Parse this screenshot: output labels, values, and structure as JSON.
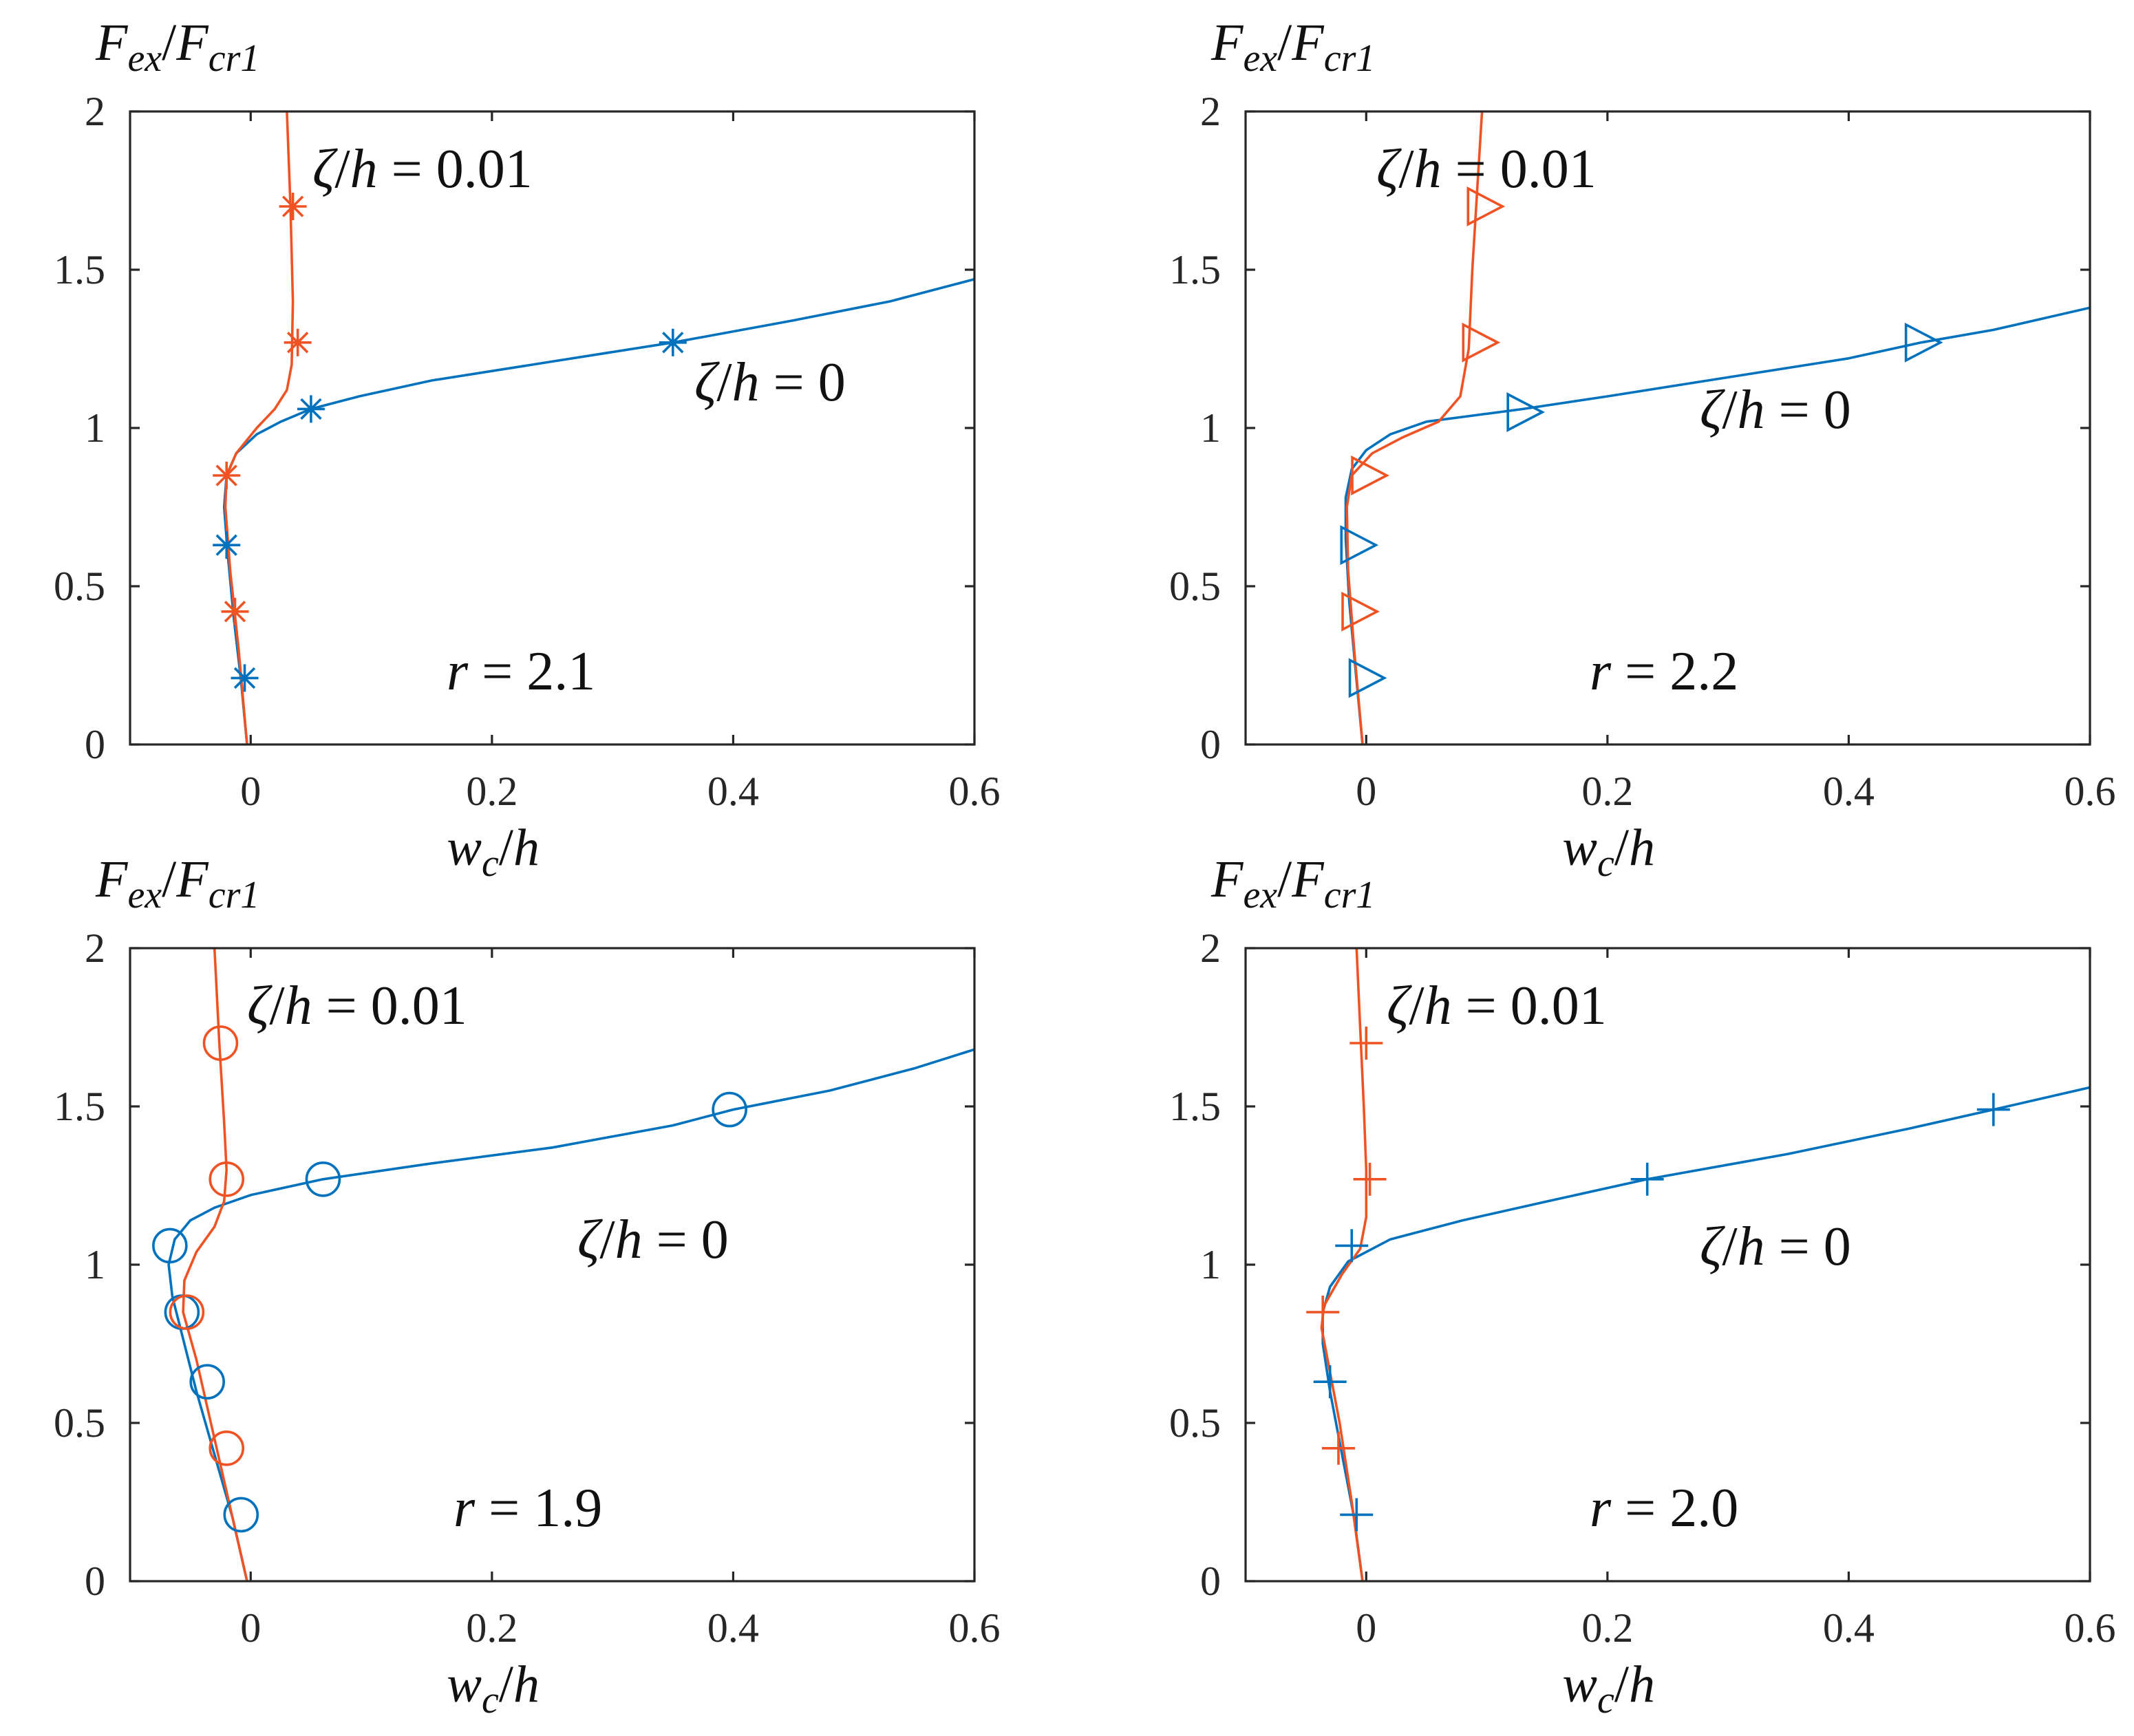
{
  "colors": {
    "zeta0": "#0072BD",
    "zeta001": "#F05323"
  },
  "chart_data": [
    {
      "type": "line",
      "xlabel_base": "w",
      "xlabel_sub": "c",
      "xlabel_rest": "/h",
      "ylabel_base_1": "F",
      "ylabel_sub_1": "ex",
      "ylabel_mid": "/F",
      "ylabel_sub_2": "cr1",
      "xlim": [
        -0.1,
        0.6
      ],
      "ylim": [
        0,
        2
      ],
      "xticks": [
        "0",
        "0.2",
        "0.4",
        "0.6"
      ],
      "xtick_values": [
        0,
        0.2,
        0.4,
        0.6
      ],
      "yticks": [
        "0",
        "0.5",
        "1",
        "1.5",
        "2"
      ],
      "ytick_values": [
        0,
        0.5,
        1,
        1.5,
        2
      ],
      "r_label": "r = 2.1",
      "marker": "asterisk",
      "series": [
        {
          "name": "ζ/h = 0",
          "color_key": "zeta0",
          "x": [
            -0.003,
            -0.008,
            -0.014,
            -0.019,
            -0.022,
            -0.02,
            -0.012,
            0.005,
            0.025,
            0.05,
            0.09,
            0.15,
            0.25,
            0.35,
            0.45,
            0.53,
            0.6
          ],
          "y": [
            0.0,
            0.2,
            0.4,
            0.6,
            0.75,
            0.85,
            0.92,
            0.98,
            1.02,
            1.06,
            1.1,
            1.15,
            1.21,
            1.27,
            1.34,
            1.4,
            1.47
          ],
          "markers": [
            [
              -0.005,
              0.21
            ],
            [
              -0.02,
              0.63
            ],
            [
              0.05,
              1.06
            ],
            [
              0.35,
              1.27
            ]
          ]
        },
        {
          "name": "ζ/h = 0.01",
          "color_key": "zeta001",
          "x": [
            -0.003,
            -0.01,
            -0.017,
            -0.021,
            -0.02,
            -0.012,
            0.005,
            0.02,
            0.03,
            0.034,
            0.035,
            0.033,
            0.03
          ],
          "y": [
            0.0,
            0.3,
            0.55,
            0.75,
            0.85,
            0.92,
            1.0,
            1.06,
            1.12,
            1.2,
            1.4,
            1.7,
            2.0
          ],
          "markers": [
            [
              -0.013,
              0.42
            ],
            [
              -0.02,
              0.85
            ],
            [
              0.039,
              1.27
            ],
            [
              0.035,
              1.7
            ]
          ]
        }
      ]
    },
    {
      "type": "line",
      "xlabel_base": "w",
      "xlabel_sub": "c",
      "xlabel_rest": "/h",
      "ylabel_base_1": "F",
      "ylabel_sub_1": "ex",
      "ylabel_mid": "/F",
      "ylabel_sub_2": "cr1",
      "xlim": [
        -0.1,
        0.6
      ],
      "ylim": [
        0,
        2
      ],
      "xticks": [
        "0",
        "0.2",
        "0.4",
        "0.6"
      ],
      "xtick_values": [
        0,
        0.2,
        0.4,
        0.6
      ],
      "yticks": [
        "0",
        "0.5",
        "1",
        "1.5",
        "2"
      ],
      "ytick_values": [
        0,
        0.5,
        1,
        1.5,
        2
      ],
      "r_label": "r = 2.2",
      "marker": "triangle",
      "series": [
        {
          "name": "ζ/h = 0",
          "color_key": "zeta0",
          "x": [
            -0.003,
            -0.008,
            -0.014,
            -0.017,
            -0.017,
            -0.012,
            0.0,
            0.02,
            0.05,
            0.09,
            0.13,
            0.2,
            0.3,
            0.4,
            0.46,
            0.52,
            0.6
          ],
          "y": [
            0.0,
            0.2,
            0.45,
            0.65,
            0.78,
            0.87,
            0.93,
            0.98,
            1.02,
            1.04,
            1.06,
            1.1,
            1.16,
            1.22,
            1.27,
            1.31,
            1.38
          ],
          "markers": [
            [
              -0.001,
              0.21
            ],
            [
              -0.008,
              0.63
            ],
            [
              0.13,
              1.05
            ],
            [
              0.46,
              1.27
            ]
          ]
        },
        {
          "name": "ζ/h = 0.01",
          "color_key": "zeta001",
          "x": [
            -0.003,
            -0.01,
            -0.015,
            -0.016,
            -0.012,
            0.005,
            0.03,
            0.06,
            0.078,
            0.085,
            0.088,
            0.092,
            0.096
          ],
          "y": [
            0.0,
            0.3,
            0.55,
            0.75,
            0.85,
            0.92,
            0.97,
            1.02,
            1.1,
            1.25,
            1.5,
            1.75,
            2.0
          ],
          "markers": [
            [
              -0.007,
              0.42
            ],
            [
              0.001,
              0.85
            ],
            [
              0.093,
              1.27
            ],
            [
              0.097,
              1.7
            ]
          ]
        }
      ]
    },
    {
      "type": "line",
      "xlabel_base": "w",
      "xlabel_sub": "c",
      "xlabel_rest": "/h",
      "ylabel_base_1": "F",
      "ylabel_sub_1": "ex",
      "ylabel_mid": "/F",
      "ylabel_sub_2": "cr1",
      "xlim": [
        -0.1,
        0.6
      ],
      "ylim": [
        0,
        2
      ],
      "xticks": [
        "0",
        "0.2",
        "0.4",
        "0.6"
      ],
      "xtick_values": [
        0,
        0.2,
        0.4,
        0.6
      ],
      "yticks": [
        "0",
        "0.5",
        "1",
        "1.5",
        "2"
      ],
      "ytick_values": [
        0,
        0.5,
        1,
        1.5,
        2
      ],
      "r_label": "r = 1.9",
      "marker": "circle",
      "series": [
        {
          "name": "ζ/h = 0",
          "color_key": "zeta0",
          "x": [
            -0.003,
            -0.015,
            -0.03,
            -0.045,
            -0.055,
            -0.065,
            -0.068,
            -0.063,
            -0.05,
            -0.03,
            0.0,
            0.06,
            0.15,
            0.25,
            0.35,
            0.4,
            0.48,
            0.55,
            0.6
          ],
          "y": [
            0.0,
            0.2,
            0.4,
            0.6,
            0.75,
            0.9,
            1.0,
            1.08,
            1.14,
            1.18,
            1.22,
            1.27,
            1.32,
            1.37,
            1.44,
            1.49,
            1.55,
            1.62,
            1.68
          ],
          "markers": [
            [
              -0.008,
              0.21
            ],
            [
              -0.036,
              0.63
            ],
            [
              -0.057,
              0.85
            ],
            [
              -0.067,
              1.06
            ],
            [
              0.06,
              1.27
            ],
            [
              0.397,
              1.49
            ]
          ]
        },
        {
          "name": "ζ/h = 0.01",
          "color_key": "zeta001",
          "x": [
            -0.003,
            -0.015,
            -0.03,
            -0.045,
            -0.056,
            -0.055,
            -0.045,
            -0.03,
            -0.022,
            -0.02,
            -0.022,
            -0.026,
            -0.03
          ],
          "y": [
            0.0,
            0.2,
            0.45,
            0.7,
            0.85,
            0.95,
            1.04,
            1.12,
            1.2,
            1.3,
            1.45,
            1.7,
            2.0
          ],
          "markers": [
            [
              -0.02,
              0.42
            ],
            [
              -0.053,
              0.85
            ],
            [
              -0.02,
              1.27
            ],
            [
              -0.025,
              1.7
            ]
          ]
        }
      ]
    },
    {
      "type": "line",
      "xlabel_base": "w",
      "xlabel_sub": "c",
      "xlabel_rest": "/h",
      "ylabel_base_1": "F",
      "ylabel_sub_1": "ex",
      "ylabel_mid": "/F",
      "ylabel_sub_2": "cr1",
      "xlim": [
        -0.1,
        0.6
      ],
      "ylim": [
        0,
        2
      ],
      "xticks": [
        "0",
        "0.2",
        "0.4",
        "0.6"
      ],
      "xtick_values": [
        0,
        0.2,
        0.4,
        0.6
      ],
      "yticks": [
        "0",
        "0.5",
        "1",
        "1.5",
        "2"
      ],
      "ytick_values": [
        0,
        0.5,
        1,
        1.5,
        2
      ],
      "r_label": "r = 2.0",
      "marker": "plus",
      "series": [
        {
          "name": "ζ/h = 0",
          "color_key": "zeta0",
          "x": [
            -0.003,
            -0.01,
            -0.02,
            -0.03,
            -0.036,
            -0.036,
            -0.03,
            -0.015,
            0.02,
            0.08,
            0.15,
            0.233,
            0.35,
            0.45,
            0.52,
            0.6
          ],
          "y": [
            0.0,
            0.2,
            0.4,
            0.6,
            0.75,
            0.85,
            0.93,
            1.01,
            1.08,
            1.14,
            1.2,
            1.27,
            1.35,
            1.43,
            1.49,
            1.56
          ],
          "markers": [
            [
              -0.008,
              0.21
            ],
            [
              -0.03,
              0.63
            ],
            [
              -0.012,
              1.06
            ],
            [
              0.233,
              1.27
            ],
            [
              0.52,
              1.49
            ]
          ]
        },
        {
          "name": "ζ/h = 0.01",
          "color_key": "zeta001",
          "x": [
            -0.003,
            -0.012,
            -0.022,
            -0.032,
            -0.037,
            -0.035,
            -0.02,
            -0.005,
            0.0,
            0.0,
            -0.002,
            -0.005,
            -0.008
          ],
          "y": [
            0.0,
            0.25,
            0.5,
            0.7,
            0.8,
            0.87,
            0.97,
            1.05,
            1.15,
            1.3,
            1.5,
            1.75,
            2.0
          ],
          "markers": [
            [
              -0.023,
              0.42
            ],
            [
              -0.036,
              0.85
            ],
            [
              0.003,
              1.27
            ],
            [
              0.0,
              1.7
            ]
          ]
        }
      ]
    }
  ],
  "annotations": [
    {
      "zeta_001": "ζ/h = 0.01",
      "zeta_0": "ζ/h = 0"
    },
    {
      "zeta_001": "ζ/h = 0.01",
      "zeta_0": "ζ/h = 0"
    },
    {
      "zeta_001": "ζ/h = 0.01",
      "zeta_0": "ζ/h = 0"
    },
    {
      "zeta_001": "ζ/h = 0.01",
      "zeta_0": "ζ/h = 0"
    }
  ]
}
